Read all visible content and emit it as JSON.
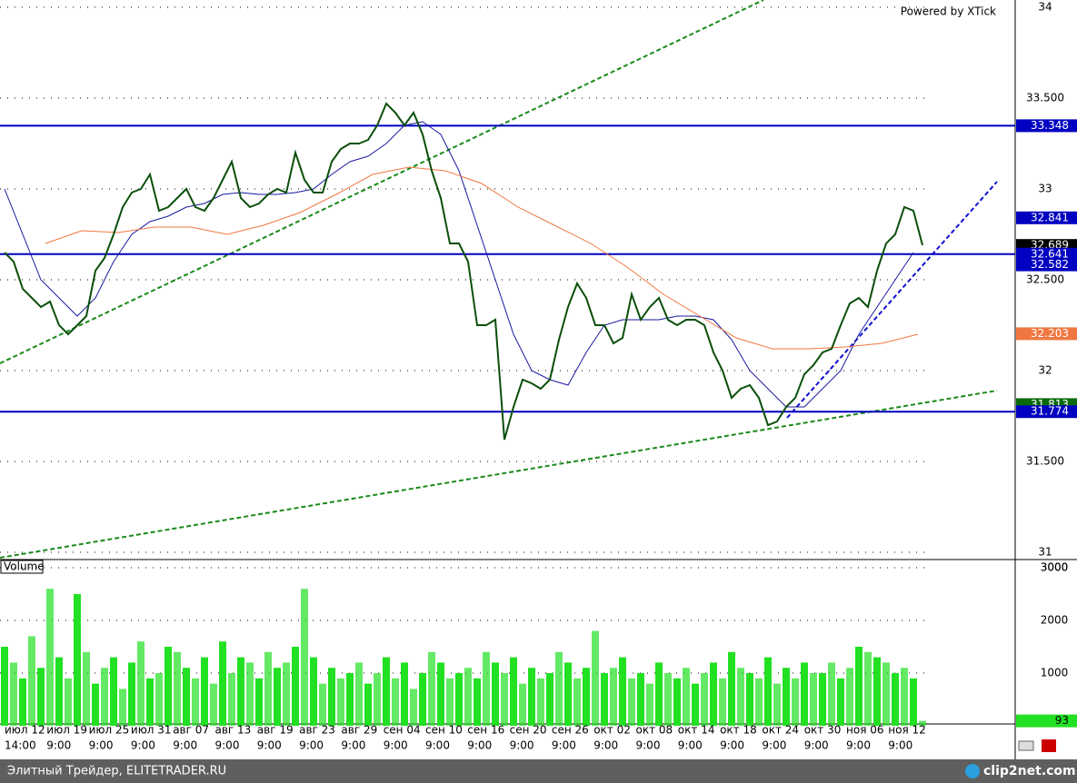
{
  "header": {
    "powered_by": "Powered by XTick",
    "volume_label": "Volume"
  },
  "footer": {
    "site": "Элитный Трейдер, ELITETRADER.RU",
    "logo": "clip2net.com"
  },
  "chart_data": {
    "type": "candlestick",
    "ylim": [
      31,
      34
    ],
    "yticks": [
      31,
      {
        "value": 31.5,
        "label": "31.500"
      },
      32,
      {
        "value": 32.5,
        "label": "32.500"
      },
      33,
      {
        "value": 33.5,
        "label": "33.500"
      },
      34
    ],
    "grid": true,
    "time_labels": [
      [
        "июл 12",
        "14:00"
      ],
      [
        "июл 19",
        "9:00"
      ],
      [
        "июл 25",
        "9:00"
      ],
      [
        "июл 31",
        "9:00"
      ],
      [
        "авг 07",
        "9:00"
      ],
      [
        "авг 13",
        "9:00"
      ],
      [
        "авг 19",
        "9:00"
      ],
      [
        "авг 23",
        "9:00"
      ],
      [
        "авг 29",
        "9:00"
      ],
      [
        "сен 04",
        "9:00"
      ],
      [
        "сен 10",
        "9:00"
      ],
      [
        "сен 16",
        "9:00"
      ],
      [
        "сен 20",
        "9:00"
      ],
      [
        "сен 26",
        "9:00"
      ],
      [
        "окт 02",
        "9:00"
      ],
      [
        "окт 08",
        "9:00"
      ],
      [
        "окт 14",
        "9:00"
      ],
      [
        "окт 18",
        "9:00"
      ],
      [
        "окт 24",
        "9:00"
      ],
      [
        "окт 30",
        "9:00"
      ],
      [
        "ноя 06",
        "9:00"
      ],
      [
        "ноя 12",
        "9:00"
      ]
    ],
    "price": {
      "color": "#0b4f0b",
      "values": [
        32.65,
        32.6,
        32.45,
        32.4,
        32.35,
        32.38,
        32.25,
        32.2,
        32.25,
        32.3,
        32.55,
        32.62,
        32.75,
        32.9,
        32.98,
        33.0,
        33.08,
        32.88,
        32.9,
        32.95,
        33.0,
        32.9,
        32.88,
        32.95,
        33.05,
        33.15,
        32.95,
        32.9,
        32.92,
        32.97,
        33.0,
        32.98,
        33.2,
        33.05,
        32.98,
        32.98,
        33.15,
        33.22,
        33.25,
        33.25,
        33.27,
        33.35,
        33.47,
        33.42,
        33.35,
        33.42,
        33.3,
        33.1,
        32.95,
        32.7,
        32.7,
        32.6,
        32.25,
        32.25,
        32.28,
        31.62,
        31.8,
        31.95,
        31.93,
        31.9,
        31.95,
        32.17,
        32.35,
        32.48,
        32.4,
        32.25,
        32.25,
        32.15,
        32.18,
        32.42,
        32.28,
        32.35,
        32.4,
        32.28,
        32.25,
        32.28,
        32.28,
        32.25,
        32.1,
        32.0,
        31.85,
        31.9,
        31.92,
        31.85,
        31.7,
        31.72,
        31.8,
        31.85,
        31.98,
        32.03,
        32.1,
        32.12,
        32.25,
        32.37,
        32.4,
        32.35,
        32.55,
        32.7,
        32.75,
        32.9,
        32.88,
        32.69
      ]
    },
    "moving_averages": [
      {
        "color": "#1a1aa0",
        "x": [
          0,
          2,
          4,
          6,
          8,
          10,
          12,
          14,
          16,
          18,
          20,
          22,
          24,
          26,
          28,
          30,
          32,
          34,
          36,
          38,
          40,
          42,
          44,
          46,
          48,
          50,
          52,
          54,
          56,
          58,
          60,
          62,
          64,
          66,
          68,
          70,
          72,
          74,
          76,
          78,
          80,
          82,
          84,
          86,
          88,
          90,
          92,
          94,
          96,
          98,
          100
        ],
        "values": [
          33.0,
          32.75,
          32.5,
          32.4,
          32.3,
          32.4,
          32.6,
          32.75,
          32.82,
          32.85,
          32.9,
          32.92,
          32.97,
          32.98,
          32.97,
          32.97,
          32.98,
          33.0,
          33.08,
          33.15,
          33.18,
          33.25,
          33.35,
          33.37,
          33.3,
          33.1,
          32.8,
          32.5,
          32.2,
          32.0,
          31.95,
          31.92,
          32.1,
          32.25,
          32.28,
          32.28,
          32.28,
          32.3,
          32.3,
          32.28,
          32.17,
          32.0,
          31.9,
          31.8,
          31.8,
          31.9,
          32.0,
          32.2,
          32.35,
          32.5,
          32.65
        ]
      },
      {
        "color": "#f07840",
        "x": [
          4.5,
          8.5,
          12.5,
          16.5,
          20.5,
          24.5,
          28.5,
          32.5,
          36.5,
          40.5,
          44.5,
          48.5,
          52.5,
          56.5,
          60.5,
          64.5,
          68.5,
          72.5,
          76.5,
          80.5,
          84.5,
          88.5,
          92.5,
          96.5,
          100.5
        ],
        "values": [
          32.7,
          32.77,
          32.76,
          32.79,
          32.79,
          32.75,
          32.8,
          32.87,
          32.97,
          33.08,
          33.12,
          33.1,
          33.03,
          32.9,
          32.8,
          32.7,
          32.57,
          32.42,
          32.3,
          32.18,
          32.12,
          32.12,
          32.13,
          32.15,
          32.2
        ]
      }
    ],
    "trendlines": [
      {
        "color": "#1a8a1a",
        "x": [
          -0.5,
          83.5
        ],
        "y": [
          32.04,
          34.04
        ]
      },
      {
        "color": "#1a8a1a",
        "x": [
          -0.5,
          109.2
        ],
        "y": [
          30.97,
          31.89
        ]
      },
      {
        "color": "#1010d0",
        "x": [
          86.1,
          109.2
        ],
        "y": [
          31.74,
          33.04
        ]
      }
    ],
    "markers": [
      {
        "value": 33.348,
        "color": "#0000c0",
        "line": true
      },
      {
        "value": 32.841,
        "color": "#0000c0",
        "line": false
      },
      {
        "value": 32.689,
        "color": "#000000",
        "line": false
      },
      {
        "value": 32.641,
        "color": "#0000c0",
        "line": true
      },
      {
        "value": 32.582,
        "color": "#0000c0",
        "line": false
      },
      {
        "value": 32.203,
        "color": "#f07840",
        "line": false
      },
      {
        "value": 31.813,
        "color": "#0a6a0a",
        "line": false
      },
      {
        "value": 31.774,
        "color": "#0000c0",
        "line": true
      }
    ],
    "volume": {
      "color": "#22e022",
      "ylim": [
        0,
        3000
      ],
      "yticks": [
        1000,
        2000,
        3000
      ],
      "values": [
        1500,
        1200,
        900,
        1700,
        1100,
        2600,
        1300,
        900,
        2500,
        1400,
        800,
        1100,
        1300,
        700,
        1200,
        1600,
        900,
        1000,
        1500,
        1400,
        1100,
        900,
        1300,
        800,
        1600,
        1000,
        1300,
        1200,
        900,
        1400,
        1100,
        1200,
        1500,
        2600,
        1300,
        800,
        1100,
        900,
        1000,
        1200,
        800,
        1000,
        1300,
        900,
        1200,
        700,
        1000,
        1400,
        1200,
        900,
        1000,
        1100,
        900,
        1400,
        1200,
        1000,
        1300,
        800,
        1100,
        900,
        1000,
        1400,
        1200,
        900,
        1100,
        1800,
        1000,
        1100,
        1300,
        900,
        1000,
        800,
        1200,
        1000,
        900,
        1100,
        800,
        1000,
        1200,
        900,
        1400,
        1100,
        1000,
        900,
        1300,
        800,
        1100,
        900,
        1200,
        1000,
        1000,
        1200,
        900,
        1100,
        1500,
        1400,
        1300,
        1200,
        1000,
        1100,
        900,
        93
      ]
    }
  }
}
